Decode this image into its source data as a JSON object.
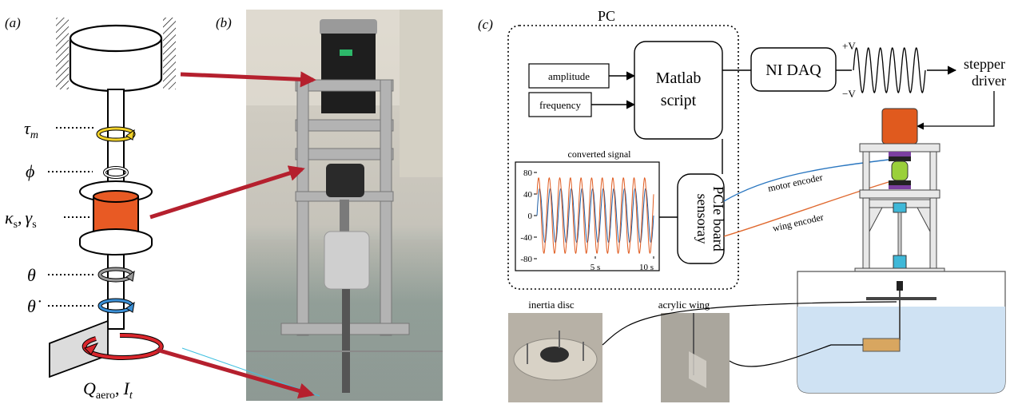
{
  "panels": {
    "a": {
      "label": "(a)",
      "symbols": {
        "tau_m": "τ",
        "tau_sub": "m",
        "phi": "ϕ",
        "kappa": "κ",
        "kappa_sub": "s",
        "gamma": "γ",
        "gamma_sub": "s",
        "comma": ",",
        "theta": "θ",
        "theta_dot": "θ̇",
        "Q": "Q",
        "Q_sub": "aero",
        "I": "I",
        "I_sub": "t"
      }
    },
    "b": {
      "label": "(b)"
    },
    "c": {
      "label": "(c)",
      "pc_title": "PC",
      "inputs": [
        "amplitude",
        "frequency"
      ],
      "matlab": [
        "Matlab",
        "script"
      ],
      "daq": "NI DAQ",
      "vplus": "+V",
      "vminus": "−V",
      "stepper": [
        "stepper",
        "driver"
      ],
      "board": [
        "sensoray",
        "PCIe board"
      ],
      "motor_encoder": "motor encoder",
      "wing_encoder": "wing encoder",
      "inertia_disc": "inertia disc",
      "acrylic_wing": "acrylic wing"
    }
  },
  "chart_data": {
    "type": "line",
    "title": "converted signal",
    "yticks": [
      80,
      40,
      0,
      -40,
      -80
    ],
    "xticks": [
      "5 s",
      "10 s"
    ],
    "xlim": [
      0,
      10
    ],
    "ylim": [
      -80,
      80
    ],
    "series": [
      {
        "color": "#1f5fa6",
        "amplitude": 50,
        "cycles": 11
      },
      {
        "color": "#e05a1e",
        "amplitude": 70,
        "cycles": 11
      }
    ]
  },
  "colors": {
    "arrow": "#b5202e",
    "spring": "#e85a24",
    "yellow": "#f2d22a",
    "gray": "#9a9a9a",
    "blue": "#3a8fd6",
    "motor": "#e05a1e",
    "green": "#9ad03a",
    "cyan": "#3fb8d8",
    "wing": "#d8a660",
    "water": "#cfe2f3",
    "purple": "#7b3fa0"
  }
}
